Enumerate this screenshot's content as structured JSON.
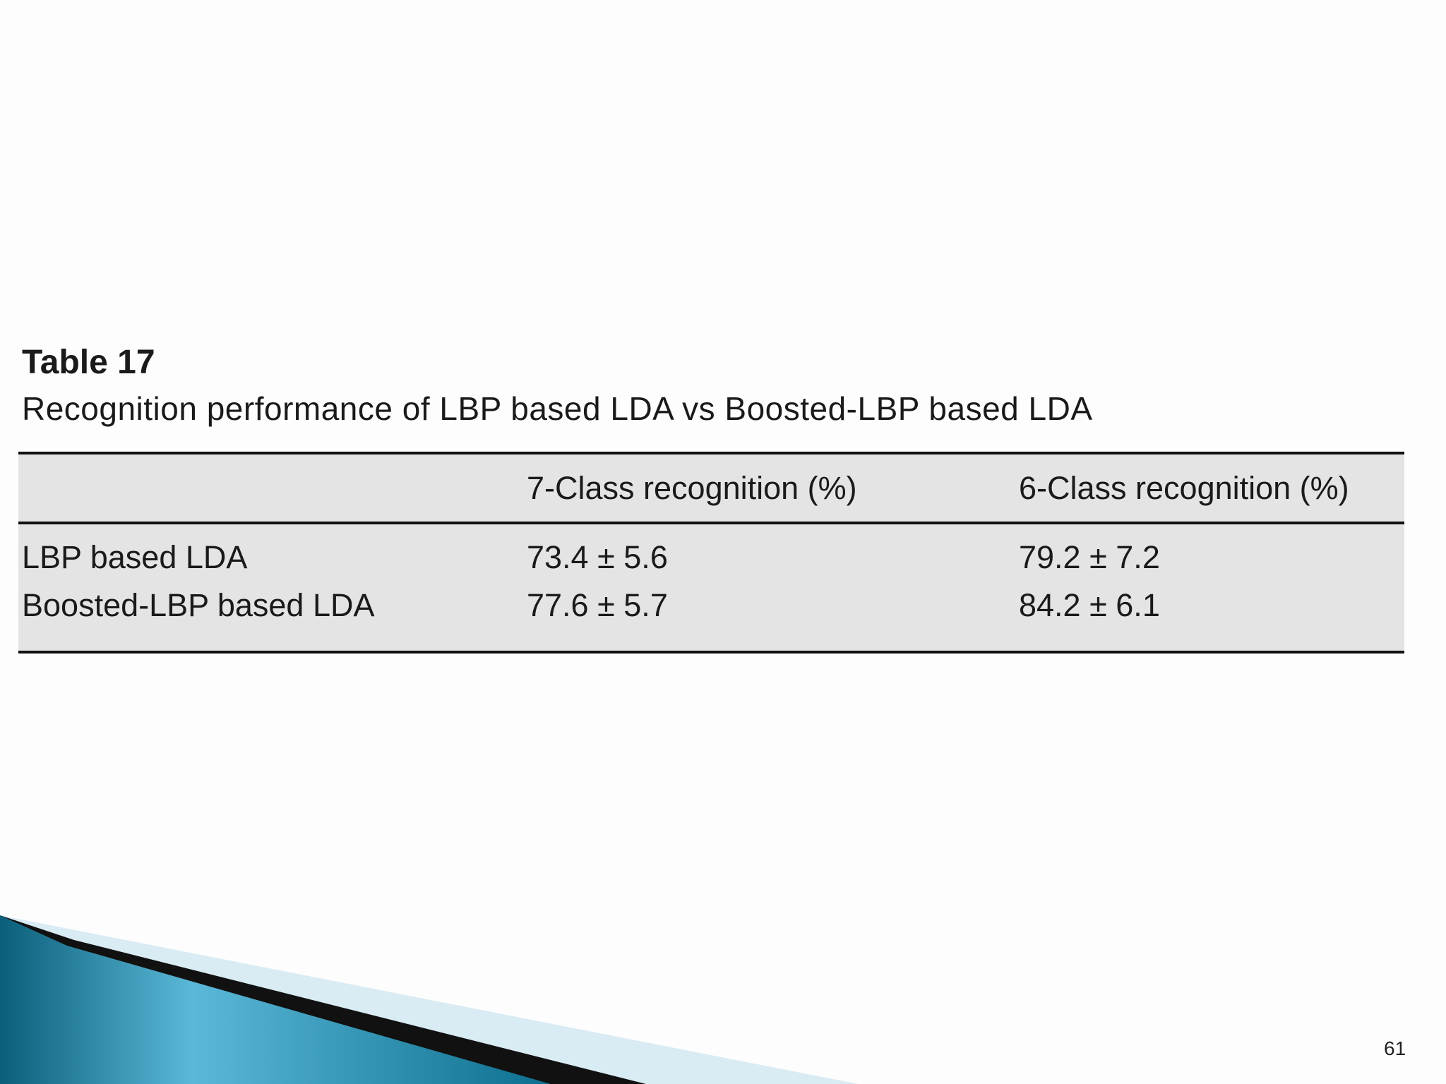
{
  "table_title": "Table 17",
  "caption": "Recognition performance of LBP based LDA vs Boosted-LBP based LDA",
  "table": {
    "header": [
      "",
      "7-Class recognition (%)",
      "6-Class recognition (%)"
    ],
    "rows": [
      [
        "LBP based LDA",
        "73.4 ± 5.6",
        "79.2 ± 7.2"
      ],
      [
        "Boosted-LBP based LDA",
        "77.6 ± 5.7",
        "84.2 ± 6.1"
      ]
    ]
  },
  "slide_number": "61"
}
